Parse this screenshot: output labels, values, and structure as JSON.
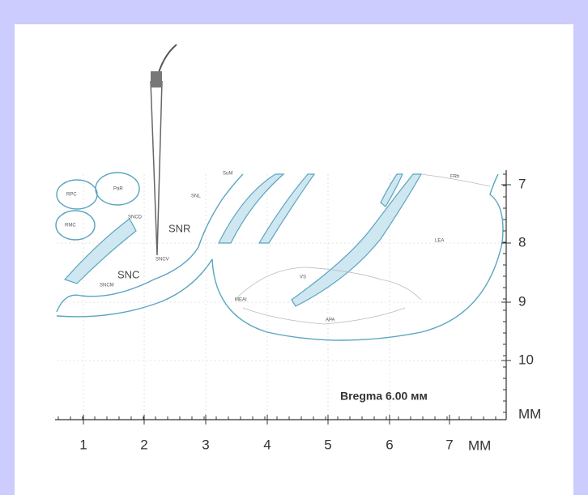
{
  "caption": "Bregma 6.00 мм",
  "x_axis": {
    "ticks": [
      "1",
      "2",
      "3",
      "4",
      "5",
      "6",
      "7"
    ],
    "unit": "MM"
  },
  "y_axis": {
    "ticks": [
      "7",
      "8",
      "9",
      "10"
    ],
    "unit": "MM"
  },
  "regions": [
    "RPC",
    "PaR",
    "RMC",
    "SNCD",
    "SNL",
    "SNR",
    "SNC",
    "SNCV",
    "SNCM",
    "SuM",
    "VS",
    "MEAI",
    "APA",
    "LEA",
    "FRh"
  ]
}
